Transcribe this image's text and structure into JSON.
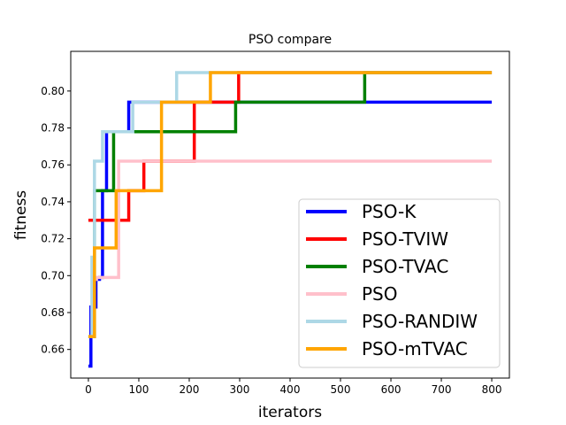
{
  "chart_data": {
    "type": "line",
    "title": "PSO compare",
    "xlabel": "iterators",
    "ylabel": "fitness",
    "xlim": [
      -35,
      835
    ],
    "ylim": [
      0.6445,
      0.8215
    ],
    "xticks": [
      0,
      100,
      200,
      300,
      400,
      500,
      600,
      700,
      800
    ],
    "xtick_labels": [
      "0",
      "100",
      "200",
      "300",
      "400",
      "500",
      "600",
      "700",
      "800"
    ],
    "yticks": [
      0.66,
      0.68,
      0.7,
      0.72,
      0.74,
      0.76,
      0.78,
      0.8
    ],
    "ytick_labels": [
      "0.66",
      "0.68",
      "0.70",
      "0.72",
      "0.74",
      "0.76",
      "0.78",
      "0.80"
    ],
    "grid": false,
    "legend_position": "lower-right",
    "series": [
      {
        "name": "PSO-K",
        "color": "#0000ff",
        "x": [
          0,
          5,
          5,
          15,
          15,
          22,
          22,
          28,
          28,
          36,
          36,
          50,
          50,
          80,
          80,
          800
        ],
        "y": [
          0.651,
          0.651,
          0.683,
          0.683,
          0.698,
          0.698,
          0.699,
          0.699,
          0.746,
          0.746,
          0.778,
          0.778,
          0.778,
          0.778,
          0.794,
          0.794
        ]
      },
      {
        "name": "PSO-TVIW",
        "color": "#ff0000",
        "x": [
          0,
          80,
          80,
          110,
          110,
          210,
          210,
          298,
          298,
          800
        ],
        "y": [
          0.73,
          0.73,
          0.746,
          0.746,
          0.762,
          0.762,
          0.794,
          0.794,
          0.81,
          0.81
        ]
      },
      {
        "name": "PSO-TVAC",
        "color": "#008000",
        "x": [
          0,
          12,
          12,
          50,
          50,
          292,
          292,
          548,
          548,
          800
        ],
        "y": [
          0.667,
          0.667,
          0.746,
          0.746,
          0.778,
          0.778,
          0.794,
          0.794,
          0.81,
          0.81
        ]
      },
      {
        "name": "PSO",
        "color": "#ffc0cb",
        "x": [
          0,
          8,
          8,
          16,
          16,
          60,
          60,
          800
        ],
        "y": [
          0.667,
          0.667,
          0.698,
          0.698,
          0.699,
          0.699,
          0.762,
          0.762
        ],
        "note_hidden": ""
      },
      {
        "name": "PSO-RANDIW",
        "color": "#add8e6",
        "x": [
          0,
          7,
          7,
          12,
          12,
          28,
          28,
          50,
          50,
          88,
          88,
          175,
          175,
          800
        ],
        "y": [
          0.667,
          0.667,
          0.71,
          0.71,
          0.762,
          0.762,
          0.778,
          0.778,
          0.778,
          0.778,
          0.794,
          0.794,
          0.81,
          0.81
        ]
      },
      {
        "name": "PSO-mTVAC",
        "color": "#ffa500",
        "x": [
          0,
          12,
          12,
          55,
          55,
          145,
          145,
          242,
          242,
          800
        ],
        "y": [
          0.667,
          0.667,
          0.715,
          0.715,
          0.746,
          0.746,
          0.794,
          0.794,
          0.81,
          0.81
        ]
      }
    ]
  }
}
